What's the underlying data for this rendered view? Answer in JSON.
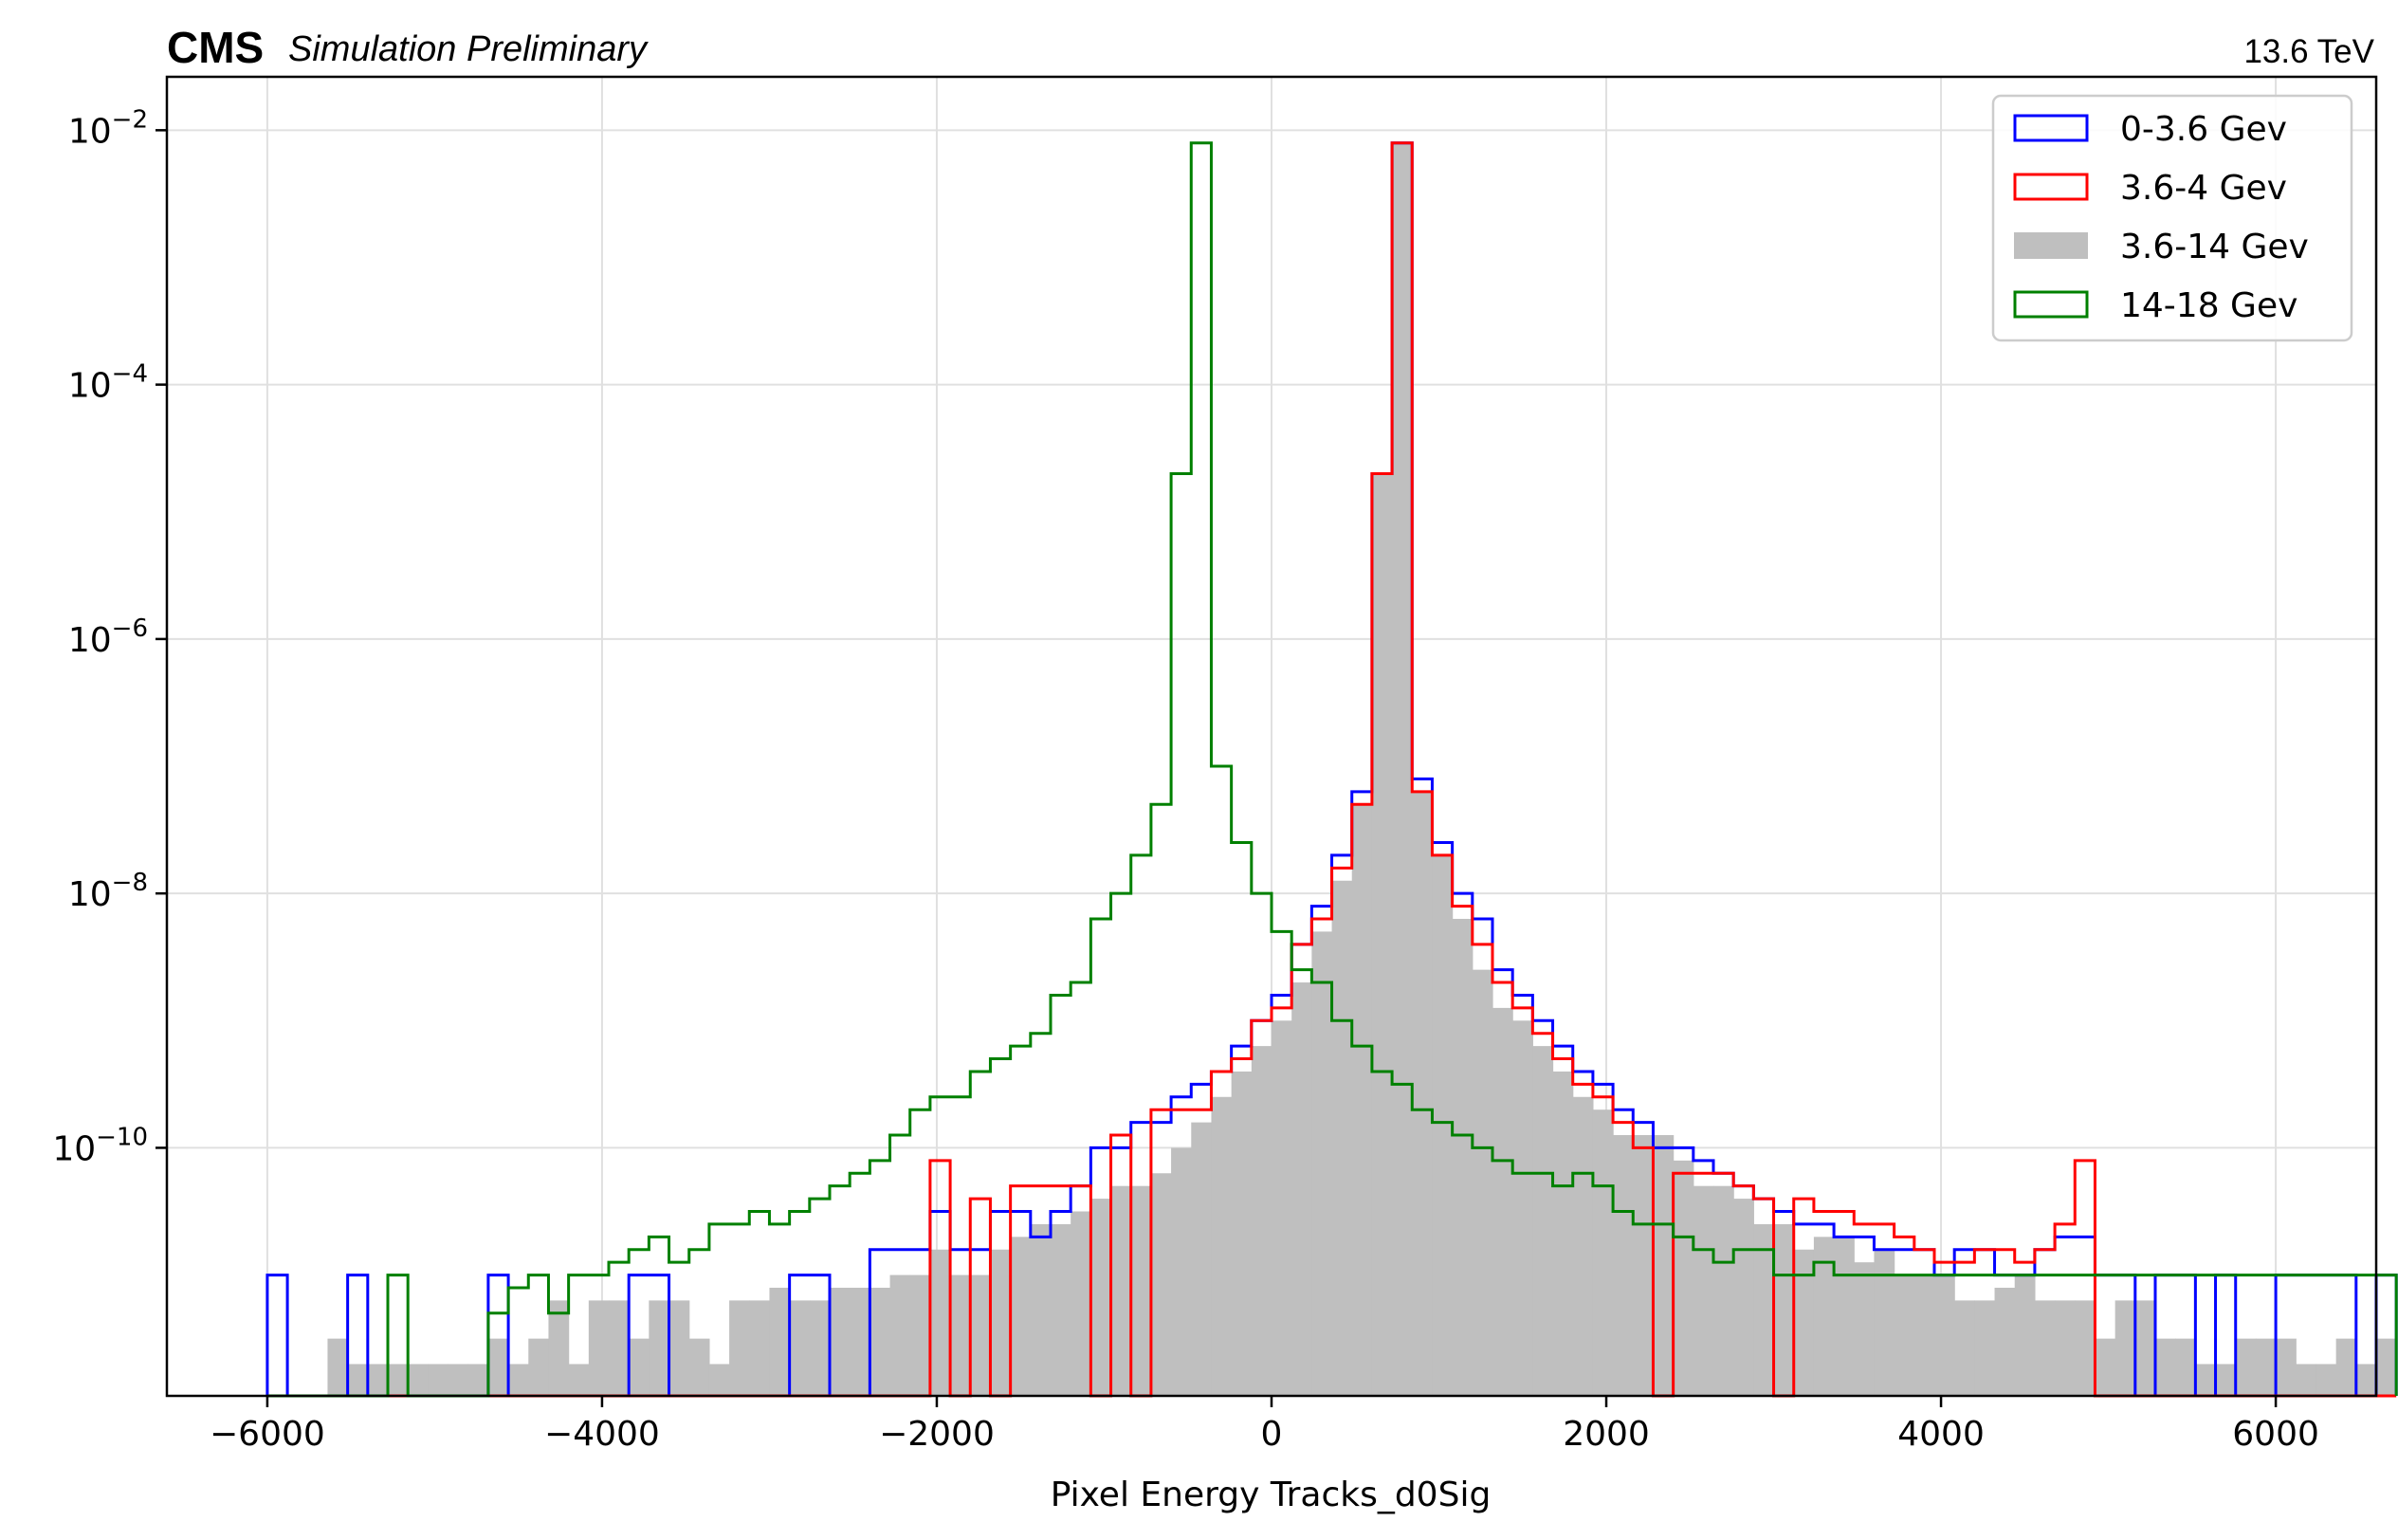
{
  "header": {
    "cms": "CMS",
    "subtitle": "Simulation Preliminary",
    "energy": "13.6 TeV"
  },
  "chart_data": {
    "type": "histogram",
    "title": "",
    "xlabel": "Pixel Energy Tracks_d0Sig",
    "ylabel": "",
    "yscale": "log",
    "xlim": [
      -6600,
      6600
    ],
    "ylim_exp": [
      -11.95,
      -1.58
    ],
    "grid": true,
    "legend_placement": "top-right",
    "bin_start": -6000,
    "bin_width": 120,
    "x_ticks": [
      -6000,
      -4000,
      -2000,
      0,
      2000,
      4000,
      6000
    ],
    "x_tick_labels": [
      "−6000",
      "−4000",
      "−2000",
      "0",
      "2000",
      "4000",
      "6000"
    ],
    "y_ticks_exp": [
      -2,
      -4,
      -6,
      -8,
      -10
    ],
    "y_tick_labels": [
      {
        "base": "10",
        "exp": "−2"
      },
      {
        "base": "10",
        "exp": "−4"
      },
      {
        "base": "10",
        "exp": "−6"
      },
      {
        "base": "10",
        "exp": "−8"
      },
      {
        "base": "10",
        "exp": "−10"
      }
    ],
    "series": [
      {
        "name": "3.6-14 Gev",
        "style": "filled",
        "color": "#bfbfbf",
        "log10_values": [
          null,
          null,
          null,
          -11.5,
          -11.7,
          -11.7,
          -11.7,
          -11.7,
          -11.7,
          -11.7,
          -11.7,
          -11.5,
          -11.7,
          -11.5,
          -11.2,
          -11.7,
          -11.2,
          -11.2,
          -11.5,
          -11.2,
          -11.2,
          -11.5,
          -11.7,
          -11.2,
          -11.2,
          -11.1,
          -11.2,
          -11.2,
          -11.1,
          -11.1,
          -11.1,
          -11.0,
          -11.0,
          -10.8,
          -11.0,
          -11.0,
          -10.8,
          -10.7,
          -10.6,
          -10.6,
          -10.5,
          -10.4,
          -10.3,
          -10.3,
          -10.2,
          -10.0,
          -9.8,
          -9.6,
          -9.4,
          -9.2,
          -9.0,
          -8.7,
          -8.3,
          -7.9,
          -7.3,
          -4.7,
          -2.1,
          -7.2,
          -7.7,
          -8.2,
          -8.6,
          -8.9,
          -9.0,
          -9.2,
          -9.4,
          -9.6,
          -9.7,
          -9.9,
          -9.9,
          -9.9,
          -10.1,
          -10.3,
          -10.3,
          -10.4,
          -10.6,
          -10.6,
          -10.8,
          -10.7,
          -10.7,
          -10.9,
          -10.8,
          -11.0,
          -11.0,
          -11.0,
          -11.2,
          -11.2,
          -11.1,
          -11.0,
          -11.2,
          -11.2,
          -11.2,
          -11.5,
          -11.2,
          -11.2,
          -11.5,
          -11.5,
          -11.7,
          -11.7,
          -11.5,
          -11.5,
          -11.5,
          -11.7,
          -11.7,
          -11.5,
          -11.7,
          -11.5
        ]
      },
      {
        "name": "0-3.6 Gev",
        "style": "step",
        "color": "#0000ff",
        "log10_values": [
          -11.0,
          null,
          null,
          null,
          -11.0,
          null,
          null,
          null,
          null,
          null,
          null,
          -11.0,
          null,
          null,
          null,
          null,
          null,
          null,
          -11.0,
          -11.0,
          null,
          null,
          null,
          null,
          null,
          null,
          -11.0,
          -11.0,
          null,
          null,
          -10.8,
          -10.8,
          -10.8,
          -10.5,
          -10.8,
          -10.8,
          -10.5,
          -10.5,
          -10.7,
          -10.5,
          -10.3,
          -10.0,
          -10.0,
          -9.8,
          -9.8,
          -9.6,
          -9.5,
          -9.4,
          -9.2,
          -9.0,
          -8.8,
          -8.4,
          -8.1,
          -7.7,
          -7.2,
          -4.7,
          -2.1,
          -7.1,
          -7.6,
          -8.0,
          -8.2,
          -8.6,
          -8.8,
          -9.0,
          -9.2,
          -9.4,
          -9.5,
          -9.7,
          -9.8,
          -10.0,
          -10.0,
          -10.1,
          -10.2,
          -10.3,
          -10.4,
          -10.5,
          -10.6,
          -10.6,
          -10.7,
          -10.7,
          -10.8,
          -10.8,
          -10.8,
          -11.0,
          -10.8,
          -10.8,
          -11.0,
          -11.0,
          -10.8,
          -10.7,
          -10.7,
          -11.0,
          -11.0,
          null,
          -11.0,
          -11.0,
          null,
          -11.0,
          null,
          null,
          -11.0,
          -11.0,
          -11.0,
          -11.0,
          null,
          -11.0
        ]
      },
      {
        "name": "3.6-4 Gev",
        "style": "step",
        "color": "#ff0000",
        "log10_values": [
          null,
          null,
          null,
          null,
          null,
          null,
          null,
          null,
          null,
          null,
          null,
          null,
          null,
          null,
          null,
          null,
          null,
          null,
          null,
          null,
          null,
          null,
          null,
          null,
          null,
          null,
          null,
          null,
          null,
          null,
          null,
          null,
          null,
          -10.1,
          null,
          -10.4,
          null,
          -10.3,
          -10.3,
          -10.3,
          -10.3,
          null,
          -9.9,
          null,
          -9.7,
          -9.7,
          -9.7,
          -9.4,
          -9.3,
          -9.0,
          -8.9,
          -8.4,
          -8.2,
          -7.8,
          -7.3,
          -4.7,
          -2.1,
          -7.2,
          -7.7,
          -8.1,
          -8.4,
          -8.7,
          -8.9,
          -9.1,
          -9.3,
          -9.5,
          -9.6,
          -9.8,
          -10.0,
          null,
          -10.2,
          -10.2,
          -10.2,
          -10.3,
          -10.4,
          null,
          -10.4,
          -10.5,
          -10.5,
          -10.6,
          -10.6,
          -10.7,
          -10.8,
          -10.9,
          -10.9,
          -10.8,
          -10.8,
          -10.9,
          -10.8,
          -10.6,
          -10.1,
          null,
          null,
          null,
          null,
          null,
          null,
          null,
          null,
          null,
          null,
          null,
          null,
          null,
          null,
          null
        ]
      },
      {
        "name": "14-18 Gev",
        "style": "step",
        "color": "#008000",
        "log10_values": [
          null,
          null,
          null,
          null,
          null,
          null,
          -11.0,
          null,
          null,
          null,
          null,
          -11.3,
          -11.1,
          -11.0,
          -11.3,
          -11.0,
          -11.0,
          -10.9,
          -10.8,
          -10.7,
          -10.9,
          -10.8,
          -10.6,
          -10.6,
          -10.5,
          -10.6,
          -10.5,
          -10.4,
          -10.3,
          -10.2,
          -10.1,
          -9.9,
          -9.7,
          -9.6,
          -9.6,
          -9.4,
          -9.3,
          -9.2,
          -9.1,
          -8.8,
          -8.7,
          -8.2,
          -8.0,
          -7.7,
          -7.3,
          -4.7,
          -2.1,
          -7.0,
          -7.6,
          -8.0,
          -8.3,
          -8.6,
          -8.7,
          -9.0,
          -9.2,
          -9.4,
          -9.5,
          -9.7,
          -9.8,
          -9.9,
          -10.0,
          -10.1,
          -10.2,
          -10.2,
          -10.3,
          -10.2,
          -10.3,
          -10.5,
          -10.6,
          -10.6,
          -10.7,
          -10.8,
          -10.9,
          -10.8,
          -10.8,
          -11.0,
          -11.0,
          -10.9,
          -11.0,
          -11.0,
          -11.0,
          -11.0,
          -11.0,
          -11.0,
          -11.0,
          -11.0,
          -11.0,
          -11.0,
          -11.0,
          -11.0,
          -11.0,
          -11.0,
          -11.0,
          -11.0,
          -11.0,
          -11.0,
          -11.0,
          -11.0,
          -11.0,
          -11.0,
          -11.0,
          -11.0,
          -11.0,
          -11.0,
          -11.0,
          -11.0
        ]
      }
    ]
  }
}
